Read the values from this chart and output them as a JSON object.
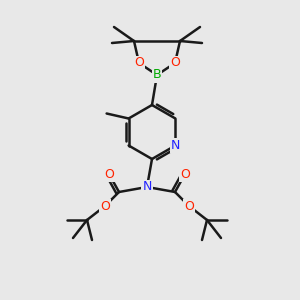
{
  "background_color": "#e8e8e8",
  "bond_color": "#1a1a1a",
  "bond_width": 1.8,
  "atom_colors": {
    "B": "#00aa00",
    "O": "#ff2200",
    "N": "#2222ff",
    "C": "#1a1a1a"
  }
}
